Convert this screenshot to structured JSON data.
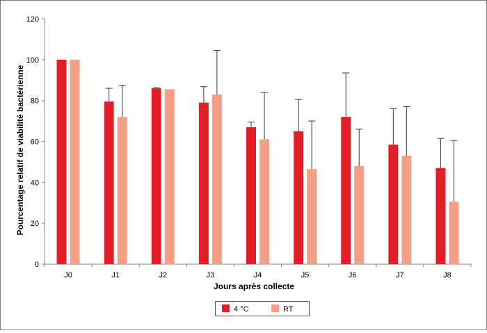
{
  "chart_data": {
    "type": "bar",
    "title": "",
    "xlabel": "Jours après collecte",
    "ylabel": "Pourcentage relatif de viabilité bactérienne",
    "ylim": [
      0,
      120
    ],
    "yticks": [
      0,
      20,
      40,
      60,
      80,
      100,
      120
    ],
    "categories": [
      "J0",
      "J1",
      "J2",
      "J3",
      "J4",
      "J5",
      "J6",
      "J7",
      "J8"
    ],
    "grid": false,
    "legend_position": "bottom-center",
    "error_bars": "upper only",
    "series": [
      {
        "name": "4 °C",
        "color": "#e31e26",
        "values": [
          100,
          79.5,
          86,
          79,
          67,
          65,
          72,
          58.5,
          47
        ],
        "errors": [
          0,
          6.5,
          0.3,
          7.8,
          2.5,
          15.5,
          21.5,
          17.5,
          14.5
        ]
      },
      {
        "name": "RT",
        "color": "#f4a086",
        "values": [
          100,
          72,
          85.5,
          83,
          61,
          46.5,
          48,
          53,
          30.5
        ],
        "errors": [
          0,
          15.5,
          0,
          21.5,
          23,
          23.5,
          18,
          24,
          30
        ]
      }
    ]
  }
}
